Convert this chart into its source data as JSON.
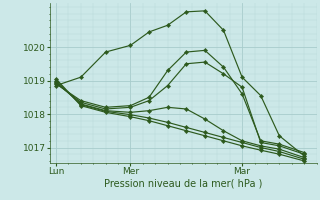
{
  "background_color": "#cce8e8",
  "grid_major_color": "#a8cccc",
  "grid_minor_color": "#b8d8d8",
  "line_color": "#2d5a1e",
  "marker_color": "#2d5a1e",
  "xlabel": "Pression niveau de la mer( hPa )",
  "x_ticks_labels": [
    "Lun",
    "Mer",
    "Mar"
  ],
  "x_ticks_pos": [
    0,
    12,
    30
  ],
  "xlim": [
    -1,
    42
  ],
  "ylim": [
    1016.55,
    1021.3
  ],
  "yticks": [
    1017,
    1018,
    1019,
    1020
  ],
  "vlines": [
    0,
    12,
    30
  ],
  "series": [
    {
      "x": [
        0,
        4,
        8,
        12,
        15,
        18,
        21,
        24,
        27,
        30,
        33,
        36,
        40
      ],
      "y": [
        1018.85,
        1019.1,
        1019.85,
        1020.05,
        1020.45,
        1020.65,
        1021.05,
        1021.08,
        1020.5,
        1019.1,
        1018.55,
        1017.35,
        1016.75
      ]
    },
    {
      "x": [
        0,
        4,
        8,
        12,
        15,
        18,
        21,
        24,
        27,
        30,
        33,
        36,
        40
      ],
      "y": [
        1018.9,
        1018.4,
        1018.2,
        1018.25,
        1018.5,
        1019.3,
        1019.85,
        1019.9,
        1019.4,
        1018.6,
        1017.2,
        1017.1,
        1016.85
      ]
    },
    {
      "x": [
        0,
        4,
        8,
        12,
        15,
        18,
        21,
        24,
        27,
        30,
        33,
        36,
        40
      ],
      "y": [
        1018.92,
        1018.35,
        1018.15,
        1018.2,
        1018.4,
        1018.85,
        1019.5,
        1019.55,
        1019.2,
        1018.8,
        1017.15,
        1017.05,
        1016.8
      ]
    },
    {
      "x": [
        0,
        4,
        8,
        12,
        15,
        18,
        21,
        24,
        27,
        30,
        33,
        36,
        40
      ],
      "y": [
        1018.95,
        1018.3,
        1018.1,
        1018.05,
        1018.1,
        1018.2,
        1018.15,
        1017.85,
        1017.5,
        1017.2,
        1017.05,
        1016.95,
        1016.7
      ]
    },
    {
      "x": [
        0,
        4,
        8,
        12,
        15,
        18,
        21,
        24,
        27,
        30,
        33,
        36,
        40
      ],
      "y": [
        1019.0,
        1018.28,
        1018.08,
        1017.98,
        1017.88,
        1017.75,
        1017.6,
        1017.45,
        1017.3,
        1017.15,
        1017.0,
        1016.88,
        1016.65
      ]
    },
    {
      "x": [
        0,
        4,
        8,
        12,
        15,
        18,
        21,
        24,
        27,
        30,
        33,
        36,
        40
      ],
      "y": [
        1019.05,
        1018.25,
        1018.05,
        1017.92,
        1017.8,
        1017.65,
        1017.5,
        1017.35,
        1017.2,
        1017.05,
        1016.92,
        1016.8,
        1016.6
      ]
    }
  ]
}
